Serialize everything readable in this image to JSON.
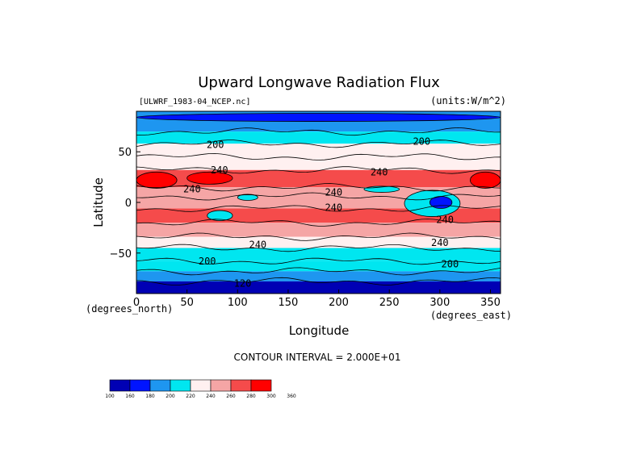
{
  "chart_data": {
    "type": "heatmap",
    "title": "Upward Longwave Radiation Flux",
    "file_label": "[ULWRF_1983-04_NCEP.nc]",
    "units_label": "(units:W/m^2)",
    "xlabel": "Longitude",
    "ylabel": "Latitude",
    "x_unit_label": "(degrees_east)",
    "y_unit_label": "(degrees_north)",
    "xlim": [
      0,
      360
    ],
    "ylim": [
      -90,
      90
    ],
    "x_ticks": [
      0,
      50,
      100,
      150,
      200,
      250,
      300,
      350
    ],
    "y_ticks": [
      50,
      0,
      -50
    ],
    "contour_interval_text": "CONTOUR INTERVAL = 2.000E+01",
    "colorbar": {
      "levels": [
        "100",
        "160",
        "180",
        "200",
        "220",
        "240",
        "260",
        "280",
        "300",
        "360"
      ],
      "colors": [
        "#0000b4",
        "#0014ff",
        "#1e96f0",
        "#00e6f0",
        "#fff0f0",
        "#f5a5a5",
        "#f54b4b",
        "#ff0000"
      ]
    },
    "contour_labels": [
      {
        "text": "200",
        "lon": 78,
        "lat": 57
      },
      {
        "text": "200",
        "lon": 282,
        "lat": 60
      },
      {
        "text": "240",
        "lon": 82,
        "lat": 32
      },
      {
        "text": "240",
        "lon": 55,
        "lat": 13
      },
      {
        "text": "240",
        "lon": 240,
        "lat": 30
      },
      {
        "text": "240",
        "lon": 195,
        "lat": 10
      },
      {
        "text": "240",
        "lon": 195,
        "lat": -5
      },
      {
        "text": "240",
        "lon": 305,
        "lat": -17
      },
      {
        "text": "240",
        "lon": 120,
        "lat": -42
      },
      {
        "text": "240",
        "lon": 300,
        "lat": -40
      },
      {
        "text": "200",
        "lon": 70,
        "lat": -58
      },
      {
        "text": "200",
        "lon": 310,
        "lat": -61
      },
      {
        "text": "120",
        "lon": 105,
        "lat": -80
      }
    ],
    "latitude_bands": [
      {
        "lat_from": 90,
        "lat_to": 70,
        "value": 185
      },
      {
        "lat_from": 70,
        "lat_to": 58,
        "value": 205
      },
      {
        "lat_from": 58,
        "lat_to": 45,
        "value": 220
      },
      {
        "lat_from": 45,
        "lat_to": 32,
        "value": 235
      },
      {
        "lat_from": 32,
        "lat_to": 15,
        "value": 270
      },
      {
        "lat_from": 15,
        "lat_to": 6,
        "value": 255
      },
      {
        "lat_from": 6,
        "lat_to": -6,
        "value": 242
      },
      {
        "lat_from": -6,
        "lat_to": -20,
        "value": 268
      },
      {
        "lat_from": -20,
        "lat_to": -34,
        "value": 255
      },
      {
        "lat_from": -34,
        "lat_to": -45,
        "value": 232
      },
      {
        "lat_from": -45,
        "lat_to": -58,
        "value": 210
      },
      {
        "lat_from": -58,
        "lat_to": -68,
        "value": 200
      },
      {
        "lat_from": -68,
        "lat_to": -78,
        "value": 185
      },
      {
        "lat_from": -78,
        "lat_to": -90,
        "value": 150
      }
    ],
    "regional_features": [
      {
        "lon_from": 0,
        "lon_to": 40,
        "lat_from": 30,
        "lat_to": 14,
        "value": 305
      },
      {
        "lon_from": 50,
        "lon_to": 95,
        "lat_from": 30,
        "lat_to": 18,
        "value": 290
      },
      {
        "lon_from": 330,
        "lon_to": 360,
        "lat_from": 30,
        "lat_to": 14,
        "value": 300
      },
      {
        "lon_from": 265,
        "lon_to": 320,
        "lat_from": 12,
        "lat_to": -14,
        "value": 205
      },
      {
        "lon_from": 290,
        "lon_to": 312,
        "lat_from": 6,
        "lat_to": -6,
        "value": 175
      },
      {
        "lon_from": 70,
        "lon_to": 95,
        "lat_from": -8,
        "lat_to": -18,
        "value": 210
      },
      {
        "lon_from": 100,
        "lon_to": 120,
        "lat_from": 8,
        "lat_to": 2,
        "value": 215
      },
      {
        "lon_from": 225,
        "lon_to": 260,
        "lat_from": 16,
        "lat_to": 10,
        "value": 215
      },
      {
        "lon_from": 0,
        "lon_to": 360,
        "lat_from": 88,
        "lat_to": 80,
        "value": 178
      }
    ]
  }
}
